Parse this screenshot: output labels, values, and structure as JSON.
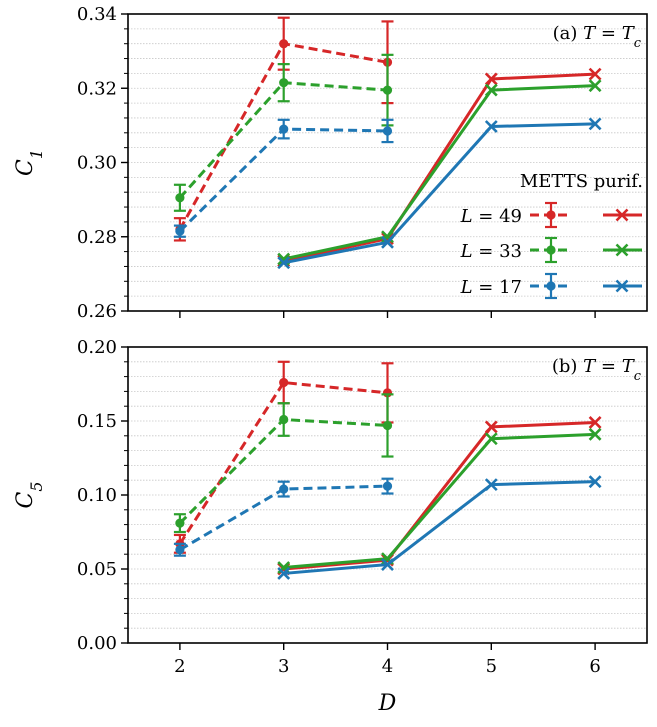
{
  "chart_data": [
    {
      "type": "line",
      "annotation": "(a) T = Tc",
      "ylabel": "C1",
      "xlabel": "",
      "x_ticks": [
        2,
        3,
        4,
        5,
        6
      ],
      "xlim": [
        1.5,
        6.5
      ],
      "ylim": [
        0.26,
        0.34
      ],
      "y_ticks": [
        0.26,
        0.28,
        0.3,
        0.32,
        0.34
      ],
      "y_tick_labels": [
        "0.26",
        "0.28",
        "0.30",
        "0.32",
        "0.34"
      ],
      "grid": "horizontal-minor",
      "legend": {
        "placement": "center-right",
        "header": "METTS  purif.",
        "entries": [
          "L = 49",
          "L = 33",
          "L = 17"
        ]
      },
      "series": [
        {
          "name": "L = 49",
          "method": "METTS",
          "color": "#d62728",
          "style": "dashed",
          "marker": "circle",
          "x": [
            2,
            3,
            4
          ],
          "y": [
            0.282,
            0.332,
            0.327
          ],
          "err": [
            0.003,
            0.007,
            0.011
          ]
        },
        {
          "name": "L = 33",
          "method": "METTS",
          "color": "#2ca02c",
          "style": "dashed",
          "marker": "circle",
          "x": [
            2,
            3,
            4
          ],
          "y": [
            0.2905,
            0.3215,
            0.3195
          ],
          "err": [
            0.0035,
            0.005,
            0.0095
          ]
        },
        {
          "name": "L = 17",
          "method": "METTS",
          "color": "#1f77b4",
          "style": "dashed",
          "marker": "circle",
          "x": [
            2,
            3,
            4
          ],
          "y": [
            0.2815,
            0.309,
            0.3085
          ],
          "err": [
            0.0015,
            0.0025,
            0.003
          ]
        },
        {
          "name": "L = 49",
          "method": "purif.",
          "color": "#d62728",
          "style": "solid",
          "marker": "x",
          "x": [
            3,
            4,
            5,
            6
          ],
          "y": [
            0.2735,
            0.2795,
            0.3225,
            0.3238
          ]
        },
        {
          "name": "L = 33",
          "method": "purif.",
          "color": "#2ca02c",
          "style": "solid",
          "marker": "x",
          "x": [
            3,
            4,
            5,
            6
          ],
          "y": [
            0.274,
            0.28,
            0.3195,
            0.3207
          ]
        },
        {
          "name": "L = 17",
          "method": "purif.",
          "color": "#1f77b4",
          "style": "solid",
          "marker": "x",
          "x": [
            3,
            4,
            5,
            6
          ],
          "y": [
            0.273,
            0.2785,
            0.3097,
            0.3104
          ]
        }
      ]
    },
    {
      "type": "line",
      "annotation": "(b) T = Tc",
      "ylabel": "C5",
      "xlabel": "D",
      "x_ticks": [
        2,
        3,
        4,
        5,
        6
      ],
      "x_tick_labels": [
        "2",
        "3",
        "4",
        "5",
        "6"
      ],
      "xlim": [
        1.5,
        6.5
      ],
      "ylim": [
        0.0,
        0.2
      ],
      "y_ticks": [
        0.0,
        0.05,
        0.1,
        0.15,
        0.2
      ],
      "y_tick_labels": [
        "0.00",
        "0.05",
        "0.10",
        "0.15",
        "0.20"
      ],
      "grid": "horizontal-minor",
      "series": [
        {
          "name": "L = 49",
          "method": "METTS",
          "color": "#d62728",
          "style": "dashed",
          "marker": "circle",
          "x": [
            2,
            3,
            4
          ],
          "y": [
            0.067,
            0.176,
            0.169
          ],
          "err": [
            0.006,
            0.014,
            0.02
          ]
        },
        {
          "name": "L = 33",
          "method": "METTS",
          "color": "#2ca02c",
          "style": "dashed",
          "marker": "circle",
          "x": [
            2,
            3,
            4
          ],
          "y": [
            0.081,
            0.151,
            0.147
          ],
          "err": [
            0.006,
            0.011,
            0.021
          ]
        },
        {
          "name": "L = 17",
          "method": "METTS",
          "color": "#1f77b4",
          "style": "dashed",
          "marker": "circle",
          "x": [
            2,
            3,
            4
          ],
          "y": [
            0.063,
            0.104,
            0.106
          ],
          "err": [
            0.004,
            0.005,
            0.005
          ]
        },
        {
          "name": "L = 49",
          "method": "purif.",
          "color": "#d62728",
          "style": "solid",
          "marker": "x",
          "x": [
            3,
            4,
            5,
            6
          ],
          "y": [
            0.05,
            0.056,
            0.146,
            0.149
          ]
        },
        {
          "name": "L = 33",
          "method": "purif.",
          "color": "#2ca02c",
          "style": "solid",
          "marker": "x",
          "x": [
            3,
            4,
            5,
            6
          ],
          "y": [
            0.051,
            0.057,
            0.138,
            0.141
          ]
        },
        {
          "name": "L = 17",
          "method": "purif.",
          "color": "#1f77b4",
          "style": "solid",
          "marker": "x",
          "x": [
            3,
            4,
            5,
            6
          ],
          "y": [
            0.047,
            0.053,
            0.107,
            0.109
          ]
        }
      ]
    }
  ]
}
